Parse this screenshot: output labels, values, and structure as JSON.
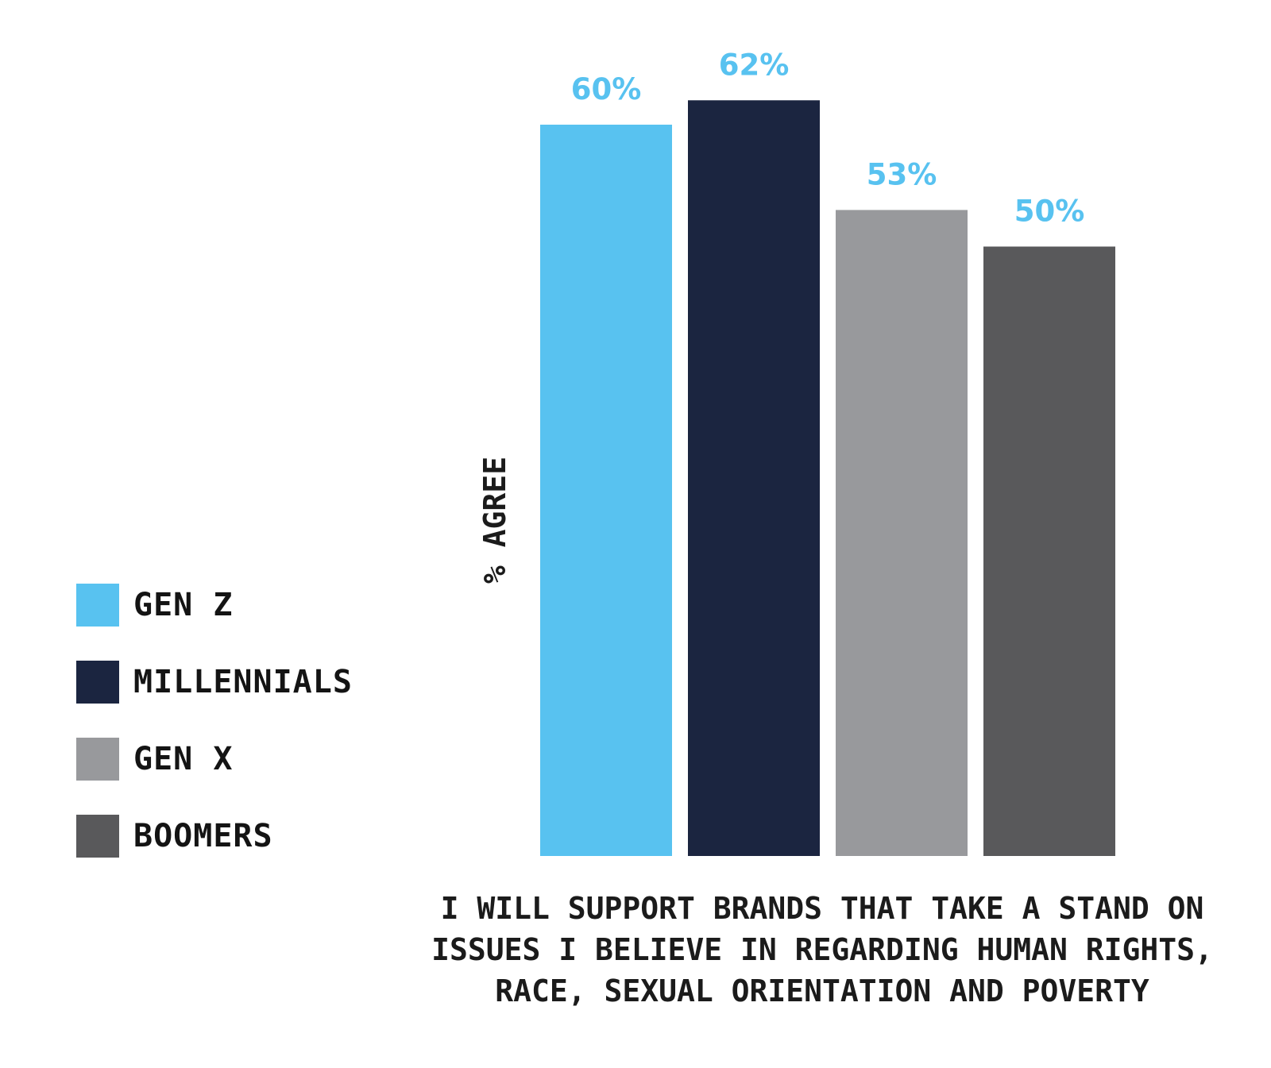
{
  "chart_data": {
    "type": "bar",
    "categories": [
      "I WILL SUPPORT BRANDS THAT TAKE A STAND ON ISSUES I BELIEVE IN REGARDING HUMAN RIGHTS, RACE, SEXUAL ORIENTATION AND POVERTY"
    ],
    "category_lines": [
      "I WILL SUPPORT BRANDS THAT TAKE A STAND ON",
      "ISSUES I BELIEVE IN REGARDING HUMAN RIGHTS,",
      "RACE, SEXUAL ORIENTATION AND POVERTY"
    ],
    "series": [
      {
        "name": "GEN Z",
        "values": [
          60
        ],
        "label": "60%",
        "color": "#58c2f0"
      },
      {
        "name": "MILLENNIALS",
        "values": [
          62
        ],
        "label": "62%",
        "color": "#1b2540"
      },
      {
        "name": "GEN X",
        "values": [
          53
        ],
        "label": "53%",
        "color": "#98999c"
      },
      {
        "name": "BOOMERS",
        "values": [
          50
        ],
        "label": "50%",
        "color": "#59595b"
      }
    ],
    "ylabel": "% AGREE",
    "ylim": [
      0,
      100
    ],
    "grid": false,
    "legend_position": "left",
    "value_label_color": "#58c2f0"
  }
}
